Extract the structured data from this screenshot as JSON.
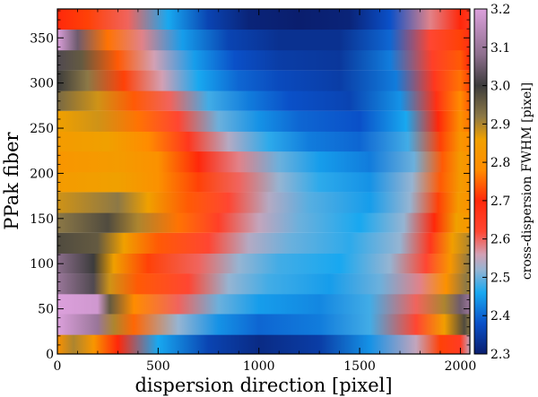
{
  "chart_data": {
    "type": "heatmap",
    "title": "",
    "xlabel": "dispersion direction [pixel]",
    "ylabel": "PPak fiber",
    "colorbar_label": "cross-dispersion FWHM [pixel]",
    "xlim": [
      0,
      2047
    ],
    "ylim": [
      0,
      382
    ],
    "x_ticks": [
      0,
      500,
      1000,
      1500,
      2000
    ],
    "y_ticks": [
      0,
      50,
      100,
      150,
      200,
      250,
      300,
      350
    ],
    "colorbar_range": [
      2.3,
      3.2
    ],
    "colorbar_ticks": [
      2.3,
      2.4,
      2.5,
      2.6,
      2.7,
      2.8,
      2.9,
      3.0,
      3.1,
      3.2
    ],
    "colormap_stops": [
      {
        "value": 2.3,
        "color": "#0a1e6e"
      },
      {
        "value": 2.38,
        "color": "#0a50c8"
      },
      {
        "value": 2.46,
        "color": "#18a8f0"
      },
      {
        "value": 2.52,
        "color": "#96b4d2"
      },
      {
        "value": 2.56,
        "color": "#d2a0b4"
      },
      {
        "value": 2.62,
        "color": "#ff4632"
      },
      {
        "value": 2.7,
        "color": "#ff280a"
      },
      {
        "value": 2.78,
        "color": "#ff8c00"
      },
      {
        "value": 2.86,
        "color": "#f0a000"
      },
      {
        "value": 2.92,
        "color": "#8c7846"
      },
      {
        "value": 3.0,
        "color": "#3c3c3c"
      },
      {
        "value": 3.08,
        "color": "#8c6e8c"
      },
      {
        "value": 3.2,
        "color": "#dca0dc"
      }
    ],
    "fiber_band_height": 22.5,
    "rows": [
      {
        "fiber": 11,
        "cols": [
          [
            0,
            2.8
          ],
          [
            80,
            2.9
          ],
          [
            180,
            2.82
          ],
          [
            300,
            2.7
          ],
          [
            500,
            2.46
          ],
          [
            750,
            2.36
          ],
          [
            1000,
            2.32
          ],
          [
            1300,
            2.35
          ],
          [
            1550,
            2.44
          ],
          [
            1780,
            2.55
          ],
          [
            1900,
            2.72
          ],
          [
            2000,
            2.65
          ],
          [
            2047,
            2.55
          ]
        ]
      },
      {
        "fiber": 33,
        "cols": [
          [
            0,
            3.2
          ],
          [
            200,
            3.1
          ],
          [
            280,
            2.9
          ],
          [
            380,
            2.75
          ],
          [
            600,
            2.52
          ],
          [
            800,
            2.44
          ],
          [
            1000,
            2.4
          ],
          [
            1300,
            2.42
          ],
          [
            1550,
            2.48
          ],
          [
            1780,
            2.62
          ],
          [
            1920,
            2.85
          ],
          [
            2020,
            2.98
          ],
          [
            2047,
            2.92
          ]
        ]
      },
      {
        "fiber": 56,
        "cols": [
          [
            0,
            3.2
          ],
          [
            200,
            3.18
          ],
          [
            260,
            2.96
          ],
          [
            380,
            2.78
          ],
          [
            600,
            2.6
          ],
          [
            800,
            2.5
          ],
          [
            1000,
            2.45
          ],
          [
            1300,
            2.43
          ],
          [
            1550,
            2.48
          ],
          [
            1780,
            2.6
          ],
          [
            1920,
            2.9
          ],
          [
            2000,
            3.05
          ],
          [
            2047,
            3.1
          ]
        ]
      },
      {
        "fiber": 78,
        "cols": [
          [
            0,
            3.1
          ],
          [
            180,
            3.02
          ],
          [
            260,
            2.88
          ],
          [
            400,
            2.74
          ],
          [
            650,
            2.62
          ],
          [
            850,
            2.52
          ],
          [
            1050,
            2.48
          ],
          [
            1350,
            2.45
          ],
          [
            1600,
            2.5
          ],
          [
            1800,
            2.58
          ],
          [
            1930,
            2.8
          ],
          [
            2030,
            2.92
          ],
          [
            2047,
            2.9
          ]
        ]
      },
      {
        "fiber": 101,
        "cols": [
          [
            0,
            3.08
          ],
          [
            180,
            3.0
          ],
          [
            280,
            2.86
          ],
          [
            450,
            2.72
          ],
          [
            700,
            2.6
          ],
          [
            900,
            2.52
          ],
          [
            1100,
            2.48
          ],
          [
            1400,
            2.46
          ],
          [
            1650,
            2.52
          ],
          [
            1830,
            2.62
          ],
          [
            1950,
            2.82
          ],
          [
            2047,
            2.92
          ]
        ]
      },
      {
        "fiber": 123,
        "cols": [
          [
            0,
            2.98
          ],
          [
            200,
            2.96
          ],
          [
            330,
            2.86
          ],
          [
            500,
            2.74
          ],
          [
            750,
            2.62
          ],
          [
            950,
            2.54
          ],
          [
            1150,
            2.5
          ],
          [
            1450,
            2.47
          ],
          [
            1700,
            2.52
          ],
          [
            1850,
            2.66
          ],
          [
            1960,
            2.85
          ],
          [
            2047,
            2.9
          ]
        ]
      },
      {
        "fiber": 146,
        "cols": [
          [
            0,
            2.92
          ],
          [
            250,
            2.98
          ],
          [
            400,
            2.9
          ],
          [
            600,
            2.76
          ],
          [
            800,
            2.64
          ],
          [
            1000,
            2.55
          ],
          [
            1200,
            2.5
          ],
          [
            1500,
            2.46
          ],
          [
            1720,
            2.52
          ],
          [
            1870,
            2.7
          ],
          [
            1980,
            2.86
          ],
          [
            2047,
            2.82
          ]
        ]
      },
      {
        "fiber": 168,
        "cols": [
          [
            0,
            2.88
          ],
          [
            300,
            2.92
          ],
          [
            450,
            2.86
          ],
          [
            650,
            2.74
          ],
          [
            850,
            2.62
          ],
          [
            1050,
            2.54
          ],
          [
            1250,
            2.49
          ],
          [
            1550,
            2.45
          ],
          [
            1750,
            2.52
          ],
          [
            1890,
            2.72
          ],
          [
            1990,
            2.84
          ],
          [
            2047,
            2.8
          ]
        ]
      },
      {
        "fiber": 191,
        "cols": [
          [
            0,
            2.84
          ],
          [
            300,
            2.86
          ],
          [
            500,
            2.8
          ],
          [
            700,
            2.72
          ],
          [
            900,
            2.6
          ],
          [
            1100,
            2.52
          ],
          [
            1300,
            2.47
          ],
          [
            1550,
            2.44
          ],
          [
            1760,
            2.52
          ],
          [
            1900,
            2.74
          ],
          [
            2000,
            2.84
          ],
          [
            2047,
            2.8
          ]
        ]
      },
      {
        "fiber": 213,
        "cols": [
          [
            0,
            2.82
          ],
          [
            300,
            2.84
          ],
          [
            500,
            2.8
          ],
          [
            700,
            2.7
          ],
          [
            900,
            2.58
          ],
          [
            1100,
            2.5
          ],
          [
            1300,
            2.45
          ],
          [
            1550,
            2.42
          ],
          [
            1770,
            2.5
          ],
          [
            1910,
            2.74
          ],
          [
            2000,
            2.84
          ],
          [
            2047,
            2.8
          ]
        ]
      },
      {
        "fiber": 236,
        "cols": [
          [
            0,
            2.84
          ],
          [
            250,
            2.86
          ],
          [
            450,
            2.78
          ],
          [
            650,
            2.66
          ],
          [
            850,
            2.54
          ],
          [
            1050,
            2.47
          ],
          [
            1250,
            2.42
          ],
          [
            1500,
            2.4
          ],
          [
            1740,
            2.48
          ],
          [
            1900,
            2.72
          ],
          [
            2000,
            2.82
          ],
          [
            2047,
            2.78
          ]
        ]
      },
      {
        "fiber": 258,
        "cols": [
          [
            0,
            2.86
          ],
          [
            200,
            2.88
          ],
          [
            400,
            2.76
          ],
          [
            600,
            2.62
          ],
          [
            800,
            2.5
          ],
          [
            1000,
            2.44
          ],
          [
            1200,
            2.4
          ],
          [
            1500,
            2.38
          ],
          [
            1730,
            2.46
          ],
          [
            1890,
            2.7
          ],
          [
            2000,
            2.8
          ],
          [
            2047,
            2.76
          ]
        ]
      },
      {
        "fiber": 281,
        "cols": [
          [
            0,
            2.94
          ],
          [
            200,
            2.88
          ],
          [
            380,
            2.74
          ],
          [
            560,
            2.6
          ],
          [
            750,
            2.48
          ],
          [
            950,
            2.42
          ],
          [
            1150,
            2.38
          ],
          [
            1450,
            2.36
          ],
          [
            1700,
            2.44
          ],
          [
            1880,
            2.68
          ],
          [
            2000,
            2.78
          ],
          [
            2047,
            2.74
          ]
        ]
      },
      {
        "fiber": 303,
        "cols": [
          [
            0,
            3.0
          ],
          [
            150,
            2.92
          ],
          [
            330,
            2.72
          ],
          [
            520,
            2.56
          ],
          [
            700,
            2.46
          ],
          [
            900,
            2.4
          ],
          [
            1100,
            2.37
          ],
          [
            1400,
            2.35
          ],
          [
            1680,
            2.42
          ],
          [
            1870,
            2.66
          ],
          [
            2000,
            2.76
          ],
          [
            2047,
            2.72
          ]
        ]
      },
      {
        "fiber": 326,
        "cols": [
          [
            0,
            3.02
          ],
          [
            120,
            2.96
          ],
          [
            300,
            2.74
          ],
          [
            480,
            2.56
          ],
          [
            680,
            2.45
          ],
          [
            880,
            2.38
          ],
          [
            1100,
            2.35
          ],
          [
            1400,
            2.34
          ],
          [
            1650,
            2.42
          ],
          [
            1860,
            2.64
          ],
          [
            2000,
            2.74
          ],
          [
            2047,
            2.7
          ]
        ]
      },
      {
        "fiber": 348,
        "cols": [
          [
            0,
            3.2
          ],
          [
            100,
            3.05
          ],
          [
            250,
            2.76
          ],
          [
            420,
            2.58
          ],
          [
            620,
            2.45
          ],
          [
            850,
            2.36
          ],
          [
            1100,
            2.33
          ],
          [
            1400,
            2.33
          ],
          [
            1650,
            2.4
          ],
          [
            1850,
            2.62
          ],
          [
            2000,
            2.72
          ],
          [
            2047,
            2.68
          ]
        ]
      },
      {
        "fiber": 371,
        "cols": [
          [
            0,
            2.7
          ],
          [
            150,
            2.72
          ],
          [
            350,
            2.6
          ],
          [
            550,
            2.46
          ],
          [
            750,
            2.36
          ],
          [
            950,
            2.31
          ],
          [
            1200,
            2.3
          ],
          [
            1450,
            2.31
          ],
          [
            1650,
            2.38
          ],
          [
            1850,
            2.58
          ],
          [
            2000,
            2.7
          ],
          [
            2047,
            2.66
          ]
        ]
      }
    ]
  }
}
